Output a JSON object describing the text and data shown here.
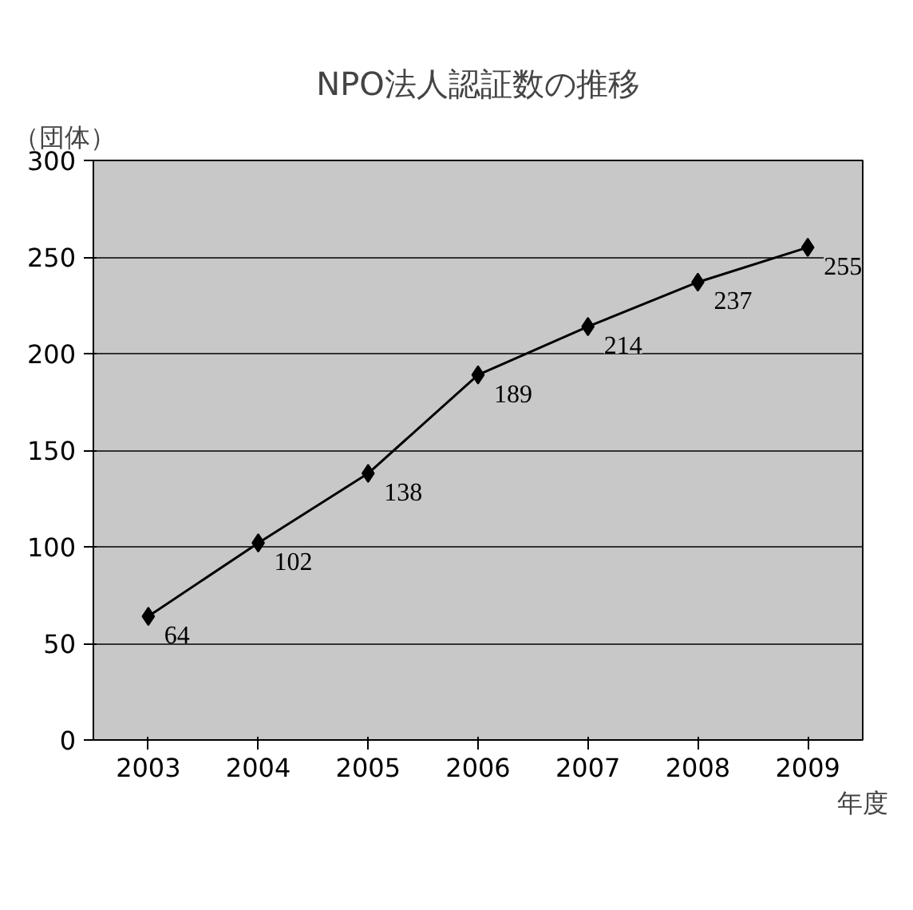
{
  "chart_data": {
    "type": "line",
    "title": "NPO法人認証数の推移",
    "ylabel": "（団体）",
    "xlabel": "年度",
    "categories": [
      "2003",
      "2004",
      "2005",
      "2006",
      "2007",
      "2008",
      "2009"
    ],
    "series": [
      {
        "color": "#000000",
        "values": [
          64,
          102,
          138,
          189,
          214,
          237,
          255
        ]
      }
    ],
    "ylim": [
      0,
      300
    ],
    "yticks": [
      0,
      50,
      100,
      150,
      200,
      250,
      300
    ],
    "grid": "y",
    "marker": "diamond",
    "line_style": "solid",
    "data_labels": true
  }
}
